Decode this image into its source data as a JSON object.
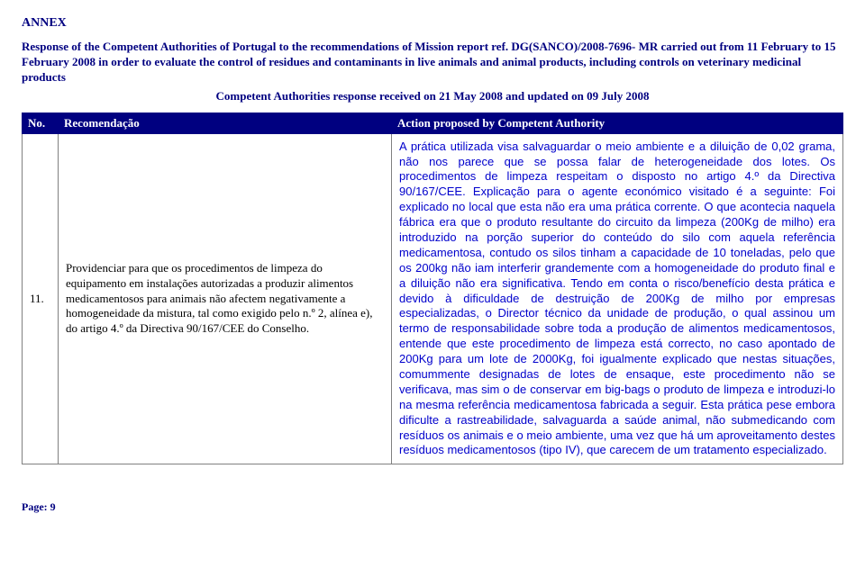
{
  "annex": "ANNEX",
  "header": {
    "line1": "Response of the Competent Authorities of Portugal to the recommendations of Mission report ref. DG(SANCO)/2008-7696- MR carried out from 11 February to 15 February 2008 in order to evaluate the control of residues and contaminants in live animals and animal products, including controls on veterinary medicinal products",
    "line2": "Competent Authorities response received on 21 May 2008 and updated on 09 July 2008"
  },
  "table": {
    "headers": {
      "no": "No.",
      "rec": "Recomendação",
      "act": "Action proposed by Competent Authority"
    },
    "row": {
      "no": "11.",
      "rec": "Providenciar para que os procedimentos de limpeza do equipamento em instalações autorizadas a produzir alimentos medicamentosos para animais não afectem negativamente a homogeneidade da mistura, tal como exigido pelo n.º 2, alínea e), do artigo 4.º da Directiva 90/167/CEE do Conselho.",
      "act": "A prática utilizada visa salvaguardar o meio ambiente e a diluição de 0,02 grama, não nos parece que se possa falar de heterogeneidade dos lotes. Os procedimentos de limpeza respeitam o disposto no artigo 4.º da Directiva 90/167/CEE. Explicação para o agente económico visitado é a seguinte: Foi explicado no local que esta não era uma prática corrente. O que acontecia naquela fábrica era que o produto resultante do circuito da limpeza (200Kg de milho) era introduzido na porção superior do conteúdo do silo com aquela referência medicamentosa, contudo os silos tinham a capacidade de 10 toneladas, pelo que os 200kg não iam interferir grandemente com a homogeneidade do produto final e a diluição não era significativa. Tendo em conta o risco/benefício desta prática e devido à dificuldade de destruição de 200Kg de milho por empresas especializadas, o Director técnico da unidade de produção, o qual assinou um termo de responsabilidade sobre toda a produção de alimentos medicamentosos, entende que este procedimento de limpeza está correcto, no caso apontado de 200Kg para um lote de 2000Kg, foi igualmente explicado que nestas situações, comummente designadas de lotes de ensaque, este procedimento não se verificava, mas sim o de conservar em big-bags o produto de limpeza e introduzi-lo na mesma referência medicamentosa fabricada a seguir. Esta prática pese embora dificulte a rastreabilidade, salvaguarda a saúde animal, não submedicando com resíduos os animais e o meio ambiente, uma vez que há um aproveitamento destes resíduos medicamentosos (tipo IV), que carecem de um tratamento especializado."
    }
  },
  "footer": "Page: 9"
}
